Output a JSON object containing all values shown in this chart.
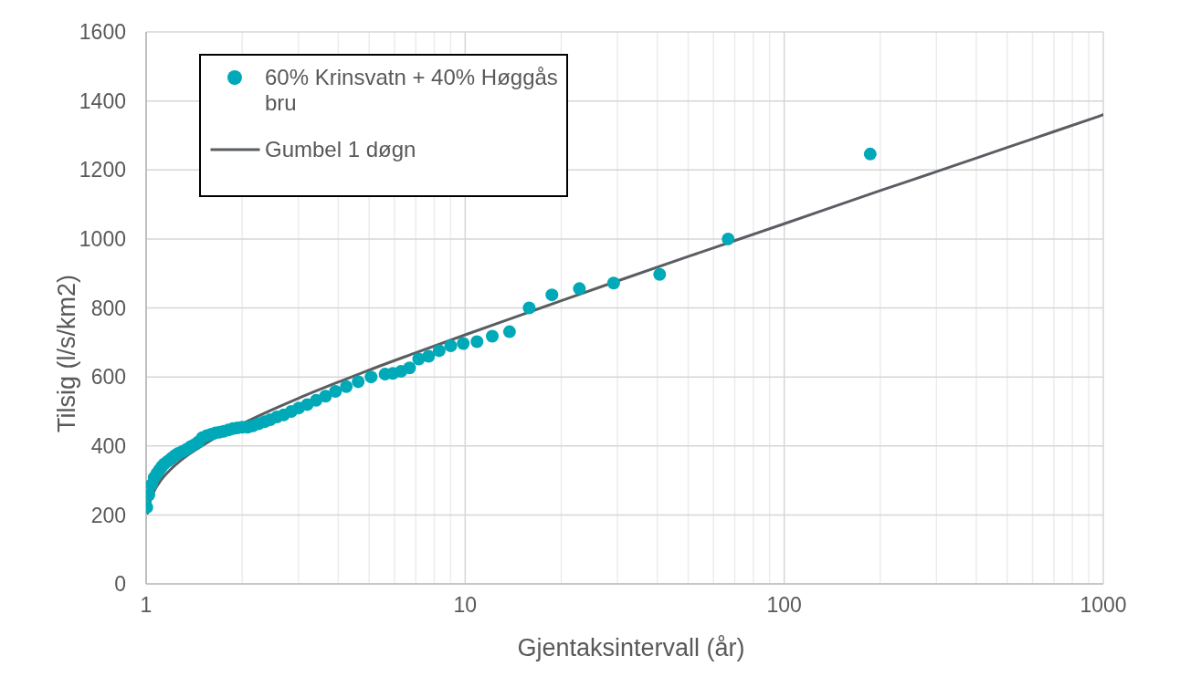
{
  "chart_data": {
    "type": "scatter",
    "xlabel": "Gjentaksintervall (år)",
    "ylabel": "Tilsig (l/s/km2)",
    "log": "x",
    "xlim": [
      1,
      1000
    ],
    "xticks": [
      1,
      {
        "value": 2,
        "label": null
      },
      {
        "value": 3,
        "label": null
      },
      {
        "value": 4,
        "label": null
      },
      {
        "value": 5,
        "label": null
      },
      {
        "value": 6,
        "label": null
      },
      {
        "value": 7,
        "label": null
      },
      {
        "value": 8,
        "label": null
      },
      {
        "value": 9,
        "label": null
      },
      10,
      {
        "value": 20,
        "label": null
      },
      {
        "value": 30,
        "label": null
      },
      {
        "value": 40,
        "label": null
      },
      {
        "value": 50,
        "label": null
      },
      {
        "value": 60,
        "label": null
      },
      {
        "value": 70,
        "label": null
      },
      {
        "value": 80,
        "label": null
      },
      {
        "value": 90,
        "label": null
      },
      100,
      {
        "value": 200,
        "label": null
      },
      {
        "value": 300,
        "label": null
      },
      {
        "value": 400,
        "label": null
      },
      {
        "value": 500,
        "label": null
      },
      {
        "value": 600,
        "label": null
      },
      {
        "value": 700,
        "label": null
      },
      {
        "value": 800,
        "label": null
      },
      {
        "value": 900,
        "label": null
      },
      1000
    ],
    "ylim": [
      0,
      1600
    ],
    "yticks": [
      0,
      200,
      400,
      600,
      800,
      1000,
      1200,
      1400,
      1600
    ],
    "grid": true,
    "legend": "top left",
    "marker": "circle",
    "series": [
      {
        "name": "60% Krinsvatn + 40% Høggås bru",
        "color": "#00a9b7",
        "x": [
          1.005,
          1.02,
          1.04,
          1.06,
          1.08,
          1.1,
          1.12,
          1.14,
          1.17,
          1.2,
          1.23,
          1.26,
          1.3,
          1.34,
          1.38,
          1.42,
          1.46,
          1.5,
          1.55,
          1.6,
          1.65,
          1.7,
          1.75,
          1.81,
          1.87,
          1.93,
          2.0,
          2.08,
          2.16,
          2.25,
          2.35,
          2.45,
          2.57,
          2.7,
          2.85,
          3.01,
          3.2,
          3.41,
          3.65,
          3.92,
          4.24,
          4.62,
          5.07,
          5.61,
          5.93,
          6.29,
          6.69,
          7.15,
          7.68,
          8.29,
          9.01,
          9.86,
          10.89,
          12.16,
          13.77,
          15.87,
          18.7,
          22.8,
          29.2,
          40.7,
          66.7,
          186
        ],
        "values": [
          222,
          258,
          288,
          308,
          320,
          330,
          340,
          348,
          356,
          364,
          372,
          378,
          384,
          390,
          398,
          404,
          412,
          424,
          430,
          434,
          438,
          440,
          442,
          446,
          450,
          452,
          454,
          454,
          458,
          464,
          470,
          476,
          484,
          490,
          500,
          510,
          520,
          532,
          544,
          558,
          572,
          586,
          600,
          608,
          610,
          616,
          626,
          652,
          660,
          676,
          690,
          697,
          702,
          718,
          731,
          800,
          838,
          856,
          872,
          897,
          1000,
          1246
        ]
      },
      {
        "name": "Gumbel 1 døgn",
        "type": "line",
        "color": "#5a5e62",
        "marker": "none",
        "x": [
          1.01,
          1.02,
          1.05,
          1.1,
          1.2,
          1.3,
          1.5,
          1.75,
          2,
          2.5,
          3,
          4,
          5,
          7,
          10,
          15,
          20,
          30,
          50,
          70,
          100,
          200,
          300,
          500,
          700,
          1000
        ],
        "values": [
          205,
          226,
          261,
          294,
          334,
          362,
          401,
          437,
          464,
          506,
          538,
          585,
          620,
          670,
          722,
          780,
          821,
          878,
          949,
          995,
          1044,
          1140,
          1195,
          1265,
          1311,
          1360
        ]
      }
    ]
  }
}
